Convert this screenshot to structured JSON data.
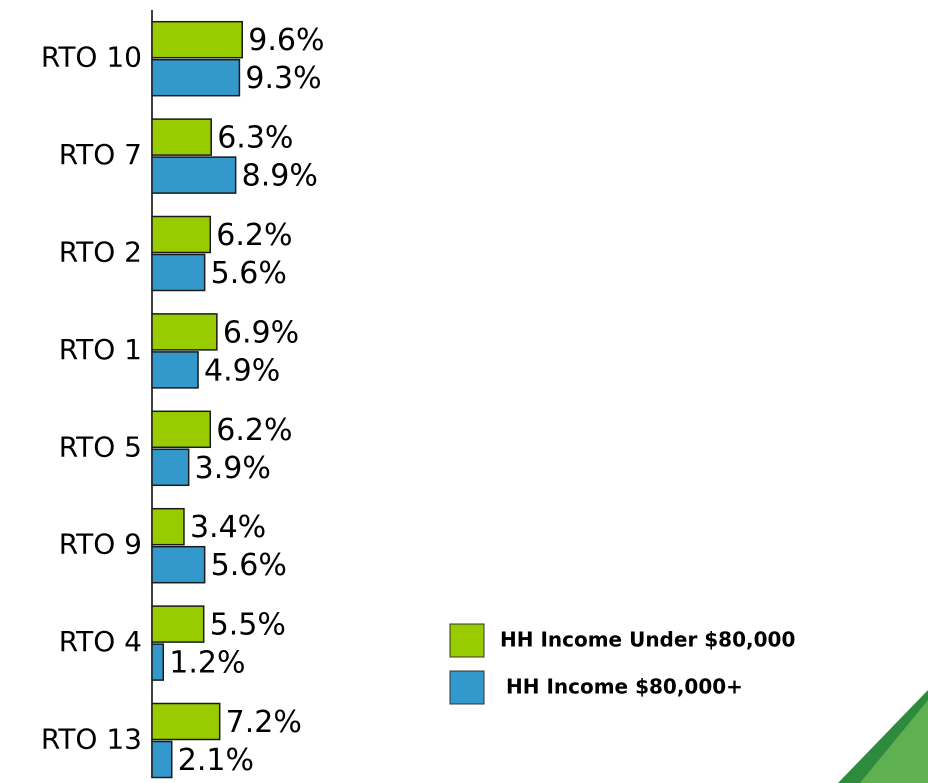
{
  "chart_data": {
    "type": "bar",
    "orientation": "horizontal",
    "categories": [
      "RTO 10",
      "RTO 7",
      "RTO 2",
      "RTO 1",
      "RTO 5",
      "RTO 9",
      "RTO 4",
      "RTO 13"
    ],
    "series": [
      {
        "name": "HH Income Under $80,000",
        "color": "#99cc00",
        "values": [
          9.6,
          6.3,
          6.2,
          6.9,
          6.2,
          3.4,
          5.5,
          7.2
        ],
        "value_labels": [
          "9.6%",
          "6.3%",
          "6.2%",
          "6.9%",
          "6.2%",
          "3.4%",
          "5.5%",
          "7.2%"
        ]
      },
      {
        "name": "HH Income $80,000+",
        "color": "#3399cc",
        "values": [
          9.3,
          8.9,
          5.6,
          4.9,
          3.9,
          5.6,
          1.2,
          2.1
        ],
        "value_labels": [
          "9.3%",
          "8.9%",
          "5.6%",
          "4.9%",
          "3.9%",
          "5.6%",
          "1.2%",
          "2.1%"
        ]
      }
    ],
    "legend": "lower-right"
  }
}
